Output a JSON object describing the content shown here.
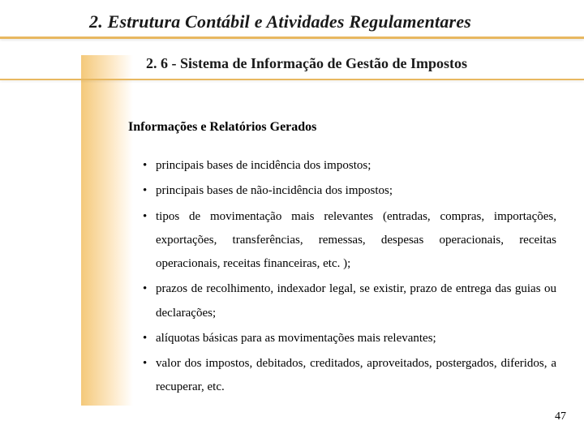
{
  "title": "2. Estrutura Contábil e Atividades Regulamentares",
  "subtitle": "2. 6 - Sistema de Informação de Gestão de Impostos",
  "section_heading": "Informações e Relatórios Gerados",
  "bullets": [
    "principais bases de incidência dos impostos;",
    "principais bases de não-incidência dos impostos;",
    "tipos de movimentação mais relevantes (entradas, compras, importações, exportações, transferências, remessas, despesas operacionais, receitas operacionais, receitas financeiras, etc. );",
    "prazos de recolhimento, indexador legal, se existir, prazo de entrega das guias ou declarações;",
    "alíquotas básicas para as movimentações mais relevantes;",
    "valor dos impostos, debitados, creditados, aproveitados, postergados, diferidos, a recuperar, etc."
  ],
  "page_number": "47",
  "colors": {
    "accent": "#e8b860",
    "gradient_start": "#f4c97a",
    "gradient_end": "#ffffff",
    "text": "#000000"
  }
}
